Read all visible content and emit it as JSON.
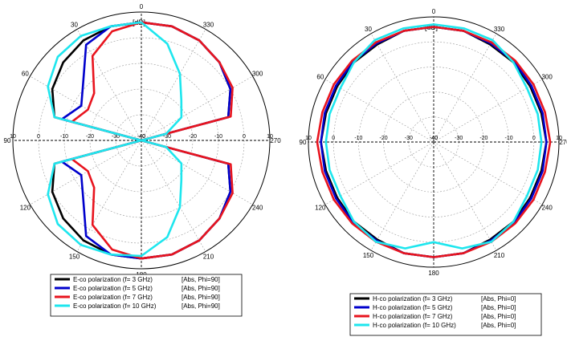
{
  "chart_data": [
    {
      "type": "polar-line",
      "unit_label": "[dB]",
      "angle_labels": [
        "0",
        "30",
        "60",
        "90",
        "120",
        "150",
        "180",
        "210",
        "240",
        "270",
        "300",
        "330"
      ],
      "radial_labels": [
        "10",
        "0",
        "-10",
        "-20",
        "-30",
        "-40"
      ],
      "rlim": [
        -40,
        10
      ],
      "angle_direction": "counter-clockwise, 0 at top",
      "grid": true,
      "legend_position": "bottom",
      "theta_deg": [
        0,
        15,
        30,
        45,
        60,
        75,
        90,
        105,
        120,
        135,
        150,
        165,
        180,
        195,
        210,
        225,
        240,
        255,
        270,
        285,
        300,
        315,
        330,
        345,
        360
      ],
      "series": [
        {
          "name": "E-co polarization (f= 3 GHz)",
          "tag": "[Abs, Phi=90]",
          "color": "#000000",
          "r_db": [
            6,
            6,
            5,
            3,
            0,
            -5,
            -40,
            -5,
            0,
            3,
            5,
            6,
            6,
            6,
            5,
            3,
            0,
            -5,
            -40,
            -5,
            0,
            3,
            5,
            6,
            6
          ]
        },
        {
          "name": "E-co polarization (f= 5 GHz)",
          "tag": "[Abs, Phi=90]",
          "color": "#0000cc",
          "r_db": [
            6,
            6,
            3,
            -8,
            -13,
            -8,
            -40,
            -8,
            -13,
            -8,
            3,
            6,
            6,
            6,
            5,
            3,
            0,
            -5,
            -40,
            -5,
            0,
            3,
            5,
            6,
            6
          ]
        },
        {
          "name": "E-co polarization (f= 7 GHz)",
          "tag": "[Abs, Phi=90]",
          "color": "#e8141e",
          "r_db": [
            6,
            4,
            -2,
            -14,
            -16,
            -12,
            -40,
            -12,
            -16,
            -14,
            -2,
            4,
            6,
            6,
            5,
            3,
            1,
            -4,
            -40,
            -4,
            1,
            3,
            5,
            6,
            6
          ]
        },
        {
          "name": "E-co polarization (f= 10 GHz)",
          "tag": "[Abs, Phi=90]",
          "color": "#1ee6ee",
          "r_db": [
            6,
            6,
            7,
            6,
            2,
            -5,
            -40,
            -5,
            2,
            6,
            7,
            6,
            5,
            -1,
            -10,
            -18,
            -22,
            -30,
            -40,
            -30,
            -22,
            -18,
            -10,
            -1,
            6
          ]
        }
      ]
    },
    {
      "type": "polar-line",
      "unit_label": "[dB]",
      "angle_labels": [
        "0",
        "30",
        "60",
        "90",
        "120",
        "150",
        "180",
        "210",
        "240",
        "270",
        "300",
        "330"
      ],
      "radial_labels": [
        "10",
        "0",
        "-10",
        "-20",
        "-30",
        "-40"
      ],
      "rlim": [
        -40,
        10
      ],
      "angle_direction": "counter-clockwise, 0 at top",
      "grid": true,
      "legend_position": "bottom",
      "theta_deg": [
        0,
        15,
        30,
        45,
        60,
        75,
        90,
        105,
        120,
        135,
        150,
        165,
        180,
        195,
        210,
        225,
        240,
        255,
        270,
        285,
        300,
        315,
        330,
        345,
        360
      ],
      "series": [
        {
          "name": "H-co polarization (f= 3 GHz)",
          "tag": "[Abs, Phi=0]",
          "color": "#000000",
          "r_db": [
            6,
            6,
            5,
            5,
            4.5,
            4.5,
            5,
            4.5,
            4.5,
            5,
            5,
            6,
            6,
            6,
            5,
            5,
            4.5,
            4.5,
            5,
            4.5,
            4.5,
            5,
            5,
            6,
            6
          ]
        },
        {
          "name": "H-co polarization (f= 5 GHz)",
          "tag": "[Abs, Phi=0]",
          "color": "#0000cc",
          "r_db": [
            6,
            6,
            5.5,
            5.5,
            5,
            5,
            5,
            5,
            5,
            5.5,
            5.5,
            6,
            6,
            6,
            5.5,
            5.5,
            5,
            5,
            5,
            5,
            5,
            5.5,
            5.5,
            6,
            6
          ]
        },
        {
          "name": "H-co polarization (f= 7 GHz)",
          "tag": "[Abs, Phi=0]",
          "color": "#e8141e",
          "r_db": [
            6,
            6,
            6,
            6,
            6,
            6,
            6.5,
            6,
            6,
            6,
            6,
            6,
            6,
            6,
            6,
            6,
            6,
            6,
            6.5,
            6,
            6,
            6,
            6,
            6,
            6
          ]
        },
        {
          "name": "H-co polarization (f= 10 GHz)",
          "tag": "[Abs, Phi=0]",
          "color": "#1ee6ee",
          "r_db": [
            7,
            7,
            7,
            5,
            3,
            3,
            3,
            3,
            3,
            5,
            6,
            4,
            0,
            4,
            6,
            5,
            3,
            3,
            3,
            3,
            3,
            5,
            7,
            7,
            7
          ]
        }
      ]
    }
  ]
}
